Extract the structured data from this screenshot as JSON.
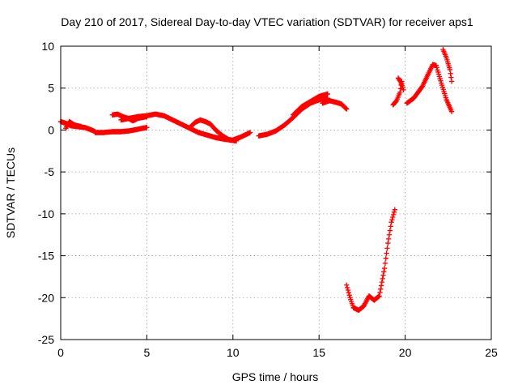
{
  "chart_data": {
    "type": "scatter",
    "title": "Day 210 of 2017, Sidereal Day-to-day VTEC variation (SDTVAR) for receiver aps1",
    "xlabel": "GPS time / hours",
    "ylabel": "SDTVAR / TECUs",
    "xlim": [
      0,
      25
    ],
    "ylim": [
      -25,
      10
    ],
    "xticks": [
      0,
      5,
      10,
      15,
      20,
      25
    ],
    "yticks": [
      10,
      5,
      0,
      -5,
      -10,
      -15,
      -20,
      -25
    ],
    "grid": true,
    "color": "#ff0000",
    "marker": "plus",
    "segments": [
      {
        "x": [
          0.0,
          0.3,
          0.6,
          1.0,
          1.4,
          1.8,
          2.0
        ],
        "y": [
          1.0,
          0.8,
          0.5,
          0.4,
          0.3,
          0.0,
          -0.2
        ]
      },
      {
        "x": [
          0.3,
          0.5,
          0.8,
          1.2
        ],
        "y": [
          0.2,
          1.0,
          0.6,
          0.4
        ]
      },
      {
        "x": [
          2.0,
          2.5,
          3.0,
          3.5,
          4.0,
          4.5,
          5.0
        ],
        "y": [
          -0.3,
          -0.3,
          -0.2,
          -0.2,
          -0.1,
          0.1,
          0.3
        ]
      },
      {
        "x": [
          3.0,
          3.3,
          3.6,
          3.9,
          4.2,
          4.5,
          5.0
        ],
        "y": [
          1.8,
          1.9,
          1.6,
          1.4,
          1.1,
          1.4,
          1.6
        ]
      },
      {
        "x": [
          3.5,
          4.0,
          4.5,
          5.0,
          5.5,
          6.0,
          6.5,
          7.0,
          7.5,
          8.0,
          8.5,
          9.0,
          9.5,
          10.0,
          10.5,
          11.0
        ],
        "y": [
          1.2,
          1.4,
          1.6,
          1.7,
          1.9,
          1.7,
          1.2,
          0.7,
          0.2,
          -0.3,
          -0.6,
          -0.9,
          -1.1,
          -1.2,
          -0.8,
          -0.3
        ]
      },
      {
        "x": [
          7.5,
          7.8,
          8.1,
          8.4,
          8.7,
          9.0,
          9.4,
          9.8,
          10.2
        ],
        "y": [
          0.3,
          0.9,
          1.2,
          1.0,
          0.7,
          0.0,
          -0.7,
          -1.2,
          -1.3
        ]
      },
      {
        "x": [
          11.5,
          12.0,
          12.5,
          13.0,
          13.5,
          14.0,
          14.5,
          15.0,
          15.5
        ],
        "y": [
          -0.7,
          -0.5,
          -0.1,
          0.6,
          1.5,
          2.5,
          3.2,
          3.6,
          3.8
        ]
      },
      {
        "x": [
          13.5,
          14.0,
          14.5,
          15.0,
          15.5
        ],
        "y": [
          1.8,
          2.8,
          3.4,
          4.0,
          4.3
        ]
      },
      {
        "x": [
          15.2,
          15.6,
          16.0,
          16.3,
          16.6
        ],
        "y": [
          3.2,
          3.5,
          3.3,
          3.1,
          2.5
        ]
      },
      {
        "x": [
          16.6,
          16.8,
          17.0,
          17.3,
          17.6,
          17.9,
          18.2,
          18.5,
          18.8,
          19.0,
          19.2,
          19.4
        ],
        "y": [
          -18.5,
          -20.0,
          -21.2,
          -21.5,
          -21.0,
          -19.8,
          -20.3,
          -19.8,
          -16.5,
          -13.5,
          -11.0,
          -9.5
        ]
      },
      {
        "x": [
          19.3,
          19.5,
          19.7,
          19.8
        ],
        "y": [
          3.0,
          3.5,
          4.5,
          5.8
        ]
      },
      {
        "x": [
          19.6,
          19.8,
          19.9
        ],
        "y": [
          6.2,
          5.5,
          4.8
        ]
      },
      {
        "x": [
          20.1,
          20.5,
          21.0,
          21.3,
          21.6,
          21.8,
          22.1,
          22.4,
          22.7
        ],
        "y": [
          3.2,
          3.8,
          5.2,
          6.5,
          7.8,
          7.7,
          5.6,
          3.6,
          2.2
        ]
      },
      {
        "x": [
          22.2,
          22.4,
          22.6,
          22.7
        ],
        "y": [
          9.6,
          8.6,
          7.2,
          5.8
        ]
      }
    ]
  }
}
